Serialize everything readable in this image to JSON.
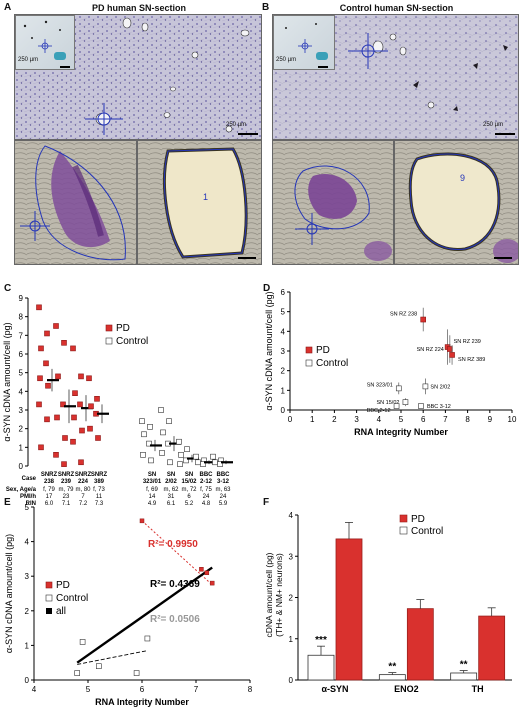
{
  "panels": {
    "A": {
      "label": "A",
      "title": "PD human SN-section",
      "scale_main": "250 µm",
      "scale_inset": "250 µm",
      "cell_number": "1"
    },
    "B": {
      "label": "B",
      "title": "Control human SN-section",
      "scale_main": "250 µm",
      "scale_inset": "250 µm",
      "cell_number": "9"
    },
    "C": {
      "label": "C",
      "ylabel": "α-SYN cDNA amount/cell (pg)"
    },
    "D": {
      "label": "D",
      "ylabel": "α-SYN cDNA amount/cell (pg)",
      "xlabel": "RNA Integrity Number"
    },
    "E": {
      "label": "E",
      "ylabel": "α-SYN cDNA amount/cell (pg)",
      "xlabel": "RNA Integrity Number"
    },
    "F": {
      "label": "F",
      "ylabel_line1": "cDNA amount/cell (pg)",
      "ylabel_line2": "(TH+ & NM+ neurons)"
    }
  },
  "legend": {
    "pd": "PD",
    "control": "Control",
    "all": "all"
  },
  "colors": {
    "pd": "#d9312e",
    "control": "#ffffff",
    "all": "#000000",
    "stain": "#6a5aa8"
  },
  "chart_data": [
    {
      "type": "scatter",
      "panel": "C",
      "ylim": [
        0,
        9
      ],
      "yticks": [
        "0",
        "1",
        "2",
        "3",
        "4",
        "5",
        "6",
        "7",
        "8",
        "9"
      ],
      "row_headers": [
        "Case",
        "Sex, Age/a",
        "PMI/h",
        "RIN"
      ],
      "cases": [
        {
          "name_line1": "SNRZ",
          "name_line2": "238",
          "sex_age": "f, 79",
          "pmi": "17",
          "rin": "6.0",
          "group": "PD",
          "mean": 4.6,
          "sem": 0.6,
          "points": [
            8.5,
            7.1,
            6.3,
            5.5,
            4.7,
            4.3,
            3.3,
            2.5,
            1.0
          ]
        },
        {
          "name_line1": "SNRZ",
          "name_line2": "239",
          "sex_age": "m, 79",
          "pmi": "23",
          "rin": "7.1",
          "group": "PD",
          "mean": 3.2,
          "sem": 0.9,
          "points": [
            7.5,
            6.6,
            4.8,
            3.3,
            2.6,
            1.5,
            0.6,
            0.1
          ]
        },
        {
          "name_line1": "SNRZ",
          "name_line2": "224",
          "sex_age": "m, 80",
          "pmi": "7",
          "rin": "7.2",
          "group": "PD",
          "mean": 3.1,
          "sem": 0.7,
          "points": [
            6.3,
            4.8,
            3.9,
            3.3,
            2.6,
            1.9,
            1.3,
            0.2
          ]
        },
        {
          "name_line1": "SNRZ",
          "name_line2": "389",
          "sex_age": "f, 73",
          "pmi": "11",
          "rin": "7.3",
          "group": "PD",
          "mean": 2.8,
          "sem": 0.5,
          "points": [
            4.7,
            3.6,
            3.2,
            2.8,
            2.0,
            1.5
          ]
        },
        {
          "name_line1": "SN",
          "name_line2": "323/01",
          "sex_age": "f, 69",
          "pmi": "14",
          "rin": "4.9",
          "group": "Control",
          "mean": 1.1,
          "sem": 0.3,
          "points": [
            2.4,
            2.1,
            1.7,
            1.2,
            0.6,
            0.3
          ]
        },
        {
          "name_line1": "SN",
          "name_line2": "2/02",
          "sex_age": "m, 62",
          "pmi": "31",
          "rin": "6.1",
          "group": "Control",
          "mean": 1.2,
          "sem": 0.4,
          "points": [
            3.0,
            2.4,
            1.8,
            1.2,
            0.7,
            0.2
          ]
        },
        {
          "name_line1": "SN",
          "name_line2": "15/02",
          "sex_age": "m, 72",
          "pmi": "6",
          "rin": "5.2",
          "group": "Control",
          "mean": 0.4,
          "sem": 0.2,
          "points": [
            1.3,
            0.9,
            0.6,
            0.3,
            0.1
          ]
        },
        {
          "name_line1": "BBC",
          "name_line2": "2-12",
          "sex_age": "f, 75",
          "pmi": "24",
          "rin": "4.8",
          "group": "Control",
          "mean": 0.2,
          "sem": 0.1,
          "points": [
            0.5,
            0.3,
            0.2,
            0.1
          ]
        },
        {
          "name_line1": "BBC",
          "name_line2": "3-12",
          "sex_age": "m, 63",
          "pmi": "24",
          "rin": "5.9",
          "group": "Control",
          "mean": 0.2,
          "sem": 0.1,
          "points": [
            0.5,
            0.3,
            0.2,
            0.1
          ]
        }
      ]
    },
    {
      "type": "scatter",
      "panel": "D",
      "xlabel": "RNA Integrity Number",
      "ylabel": "α-SYN cDNA amount/cell (pg)",
      "xlim": [
        0,
        10
      ],
      "ylim": [
        0,
        6
      ],
      "xticks": [
        "0",
        "1",
        "2",
        "3",
        "4",
        "5",
        "6",
        "7",
        "8",
        "9",
        "10"
      ],
      "yticks": [
        "0",
        "1",
        "2",
        "3",
        "4",
        "5",
        "6"
      ],
      "points": [
        {
          "label": "SN RZ 238",
          "x": 6.0,
          "y": 4.6,
          "err": 0.6,
          "group": "PD"
        },
        {
          "label": "SN RZ 239",
          "x": 7.1,
          "y": 3.2,
          "err": 0.9,
          "group": "PD"
        },
        {
          "label": "SN RZ 224",
          "x": 7.2,
          "y": 3.1,
          "err": 0.7,
          "group": "PD"
        },
        {
          "label": "SN RZ 389",
          "x": 7.3,
          "y": 2.8,
          "err": 0.5,
          "group": "PD"
        },
        {
          "label": "SN 323/01",
          "x": 4.9,
          "y": 1.1,
          "err": 0.3,
          "group": "Control"
        },
        {
          "label": "SN 2/02",
          "x": 6.1,
          "y": 1.2,
          "err": 0.4,
          "group": "Control"
        },
        {
          "label": "SN 15/02",
          "x": 5.2,
          "y": 0.4,
          "err": 0.2,
          "group": "Control"
        },
        {
          "label": "BBC 3-12",
          "x": 5.9,
          "y": 0.2,
          "err": 0.1,
          "group": "Control"
        },
        {
          "label": "BBC 2-12",
          "x": 4.8,
          "y": 0.2,
          "err": 0.1,
          "group": "Control"
        }
      ]
    },
    {
      "type": "scatter",
      "panel": "E",
      "xlabel": "RNA Integrity Number",
      "ylabel": "α-SYN cDNA amount/cell (pg)",
      "xlim": [
        4,
        8
      ],
      "ylim": [
        0,
        5
      ],
      "xticks": [
        "4",
        "5",
        "6",
        "7",
        "8"
      ],
      "yticks": [
        "0",
        "1",
        "2",
        "3",
        "4",
        "5"
      ],
      "points_pd": [
        [
          6.0,
          4.6
        ],
        [
          7.1,
          3.2
        ],
        [
          7.2,
          3.1
        ],
        [
          7.3,
          2.8
        ]
      ],
      "points_control": [
        [
          4.9,
          1.1
        ],
        [
          6.1,
          1.2
        ],
        [
          5.2,
          0.4
        ],
        [
          5.9,
          0.2
        ],
        [
          4.8,
          0.2
        ]
      ],
      "fits": [
        {
          "name": "PD",
          "r2": "R²= 0.9950",
          "from": [
            6.0,
            4.6
          ],
          "to": [
            7.3,
            2.75
          ],
          "style": "dotted"
        },
        {
          "name": "all",
          "r2": "R²= 0.4369",
          "from": [
            4.8,
            0.5
          ],
          "to": [
            7.3,
            3.25
          ],
          "style": "solid"
        },
        {
          "name": "Control",
          "r2": "R²= 0.0506",
          "from": [
            4.8,
            0.45
          ],
          "to": [
            6.1,
            0.85
          ],
          "style": "dashed"
        }
      ]
    },
    {
      "type": "bar",
      "panel": "F",
      "categories": [
        "α-SYN",
        "ENO2",
        "TH"
      ],
      "ylim": [
        0,
        4
      ],
      "yticks": [
        "0",
        "1",
        "2",
        "3",
        "4"
      ],
      "series": [
        {
          "name": "Control",
          "values": [
            0.6,
            0.13,
            0.17
          ],
          "errors": [
            0.22,
            0.05,
            0.06
          ]
        },
        {
          "name": "PD",
          "values": [
            3.42,
            1.73,
            1.55
          ],
          "errors": [
            0.4,
            0.22,
            0.2
          ]
        }
      ],
      "significance": [
        "***",
        "**",
        "**"
      ]
    }
  ]
}
